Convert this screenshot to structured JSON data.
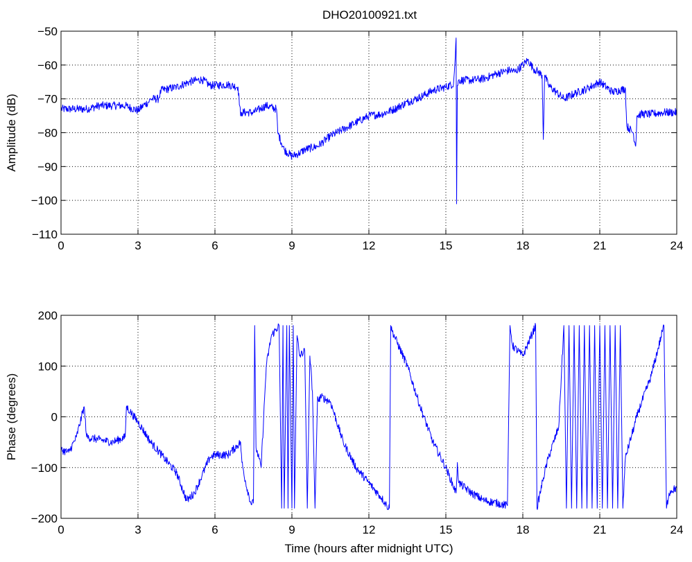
{
  "figure": {
    "title": "DHO20100921.txt"
  },
  "colors": {
    "line": "#0000ff",
    "axes": "#000000",
    "grid": "#000000",
    "background": "#ffffff"
  },
  "chart_data": [
    {
      "type": "line",
      "title": "DHO20100921.txt",
      "xlabel": "",
      "ylabel": "Amplitude (dB)",
      "xlim": [
        0,
        24
      ],
      "ylim": [
        -110,
        -50
      ],
      "xticks": [
        0,
        3,
        6,
        9,
        12,
        15,
        18,
        21,
        24
      ],
      "yticks": [
        -110,
        -100,
        -90,
        -80,
        -70,
        -60,
        -50
      ],
      "grid": true,
      "noise": 1.2,
      "series": [
        {
          "x": [
            0,
            0.5,
            1,
            1.5,
            2,
            2.5,
            3,
            3.2,
            3.4,
            3.5,
            3.8,
            3.9,
            4.5,
            5,
            5.3,
            5.5,
            5.8,
            6,
            6.5,
            6.9,
            7.0,
            7.05,
            7.5,
            8.0,
            8.4,
            8.45,
            8.7,
            9.0,
            9.3,
            9.5,
            10,
            10.5,
            11,
            11.5,
            12,
            12.5,
            13,
            13.5,
            14,
            14.5,
            15,
            15.3,
            15.35,
            15.4,
            15.42,
            15.45,
            15.5,
            16,
            16.5,
            17,
            17.5,
            17.7,
            18,
            18.2,
            18.4,
            18.6,
            18.75,
            18.8,
            18.85,
            19.0,
            19.3,
            19.6,
            20,
            20.5,
            21,
            21.5,
            22.0,
            22.05,
            22.3,
            22.4,
            22.45,
            22.6,
            23.0,
            23.5,
            24.0
          ],
          "y": [
            -73,
            -73,
            -73,
            -72,
            -72,
            -72,
            -73.5,
            -72,
            -71,
            -70,
            -70,
            -67.5,
            -66.5,
            -65,
            -64.5,
            -64.3,
            -66,
            -66,
            -65.8,
            -66.5,
            -75,
            -74,
            -74,
            -72,
            -73,
            -80,
            -85,
            -87,
            -86,
            -85,
            -84,
            -81,
            -79,
            -77,
            -75,
            -74.5,
            -73,
            -71,
            -69.5,
            -67.5,
            -66.5,
            -65.5,
            -60,
            -52,
            -101,
            -66,
            -64.5,
            -64.5,
            -64,
            -62.5,
            -61.5,
            -62,
            -60,
            -58.5,
            -61,
            -62,
            -63,
            -82,
            -63,
            -66,
            -68,
            -70,
            -68.5,
            -67,
            -65,
            -68,
            -67,
            -78,
            -80,
            -84,
            -75,
            -74.5,
            -74.5,
            -74,
            -74
          ]
        }
      ]
    },
    {
      "type": "line",
      "title": "",
      "xlabel": "Time (hours after midnight UTC)",
      "ylabel": "Phase (degrees)",
      "xlim": [
        0,
        24
      ],
      "ylim": [
        -200,
        200
      ],
      "xticks": [
        0,
        3,
        6,
        9,
        12,
        15,
        18,
        21,
        24
      ],
      "yticks": [
        -200,
        -100,
        0,
        100,
        200
      ],
      "grid": true,
      "noise": 8,
      "series": [
        {
          "x": [
            0,
            0.3,
            0.6,
            0.8,
            0.9,
            1.0,
            1.5,
            2.0,
            2.5,
            2.55,
            2.7,
            3.0,
            3.5,
            4.0,
            4.5,
            4.9,
            5.2,
            5.5,
            5.8,
            6.0,
            6.5,
            7.0,
            7.05,
            7.2,
            7.4,
            7.5,
            7.55,
            7.6,
            7.8,
            8.0,
            8.2,
            8.5,
            8.6,
            8.65,
            8.7,
            8.8,
            8.85,
            8.9,
            9.0,
            9.05,
            9.1,
            9.2,
            9.3,
            9.5,
            9.6,
            9.7,
            9.8,
            9.9,
            10.0,
            10.05,
            10.1,
            10.3,
            10.5,
            11.0,
            11.5,
            12.0,
            12.5,
            12.7,
            12.8,
            12.85,
            12.9,
            13.5,
            14.0,
            14.5,
            15.0,
            15.4,
            15.45,
            15.5,
            16.0,
            16.5,
            17.0,
            17.4,
            17.5,
            17.55,
            17.6,
            18.0,
            18.5,
            18.55,
            18.8,
            19.0,
            19.4,
            19.6,
            19.7,
            19.8,
            19.9,
            20.0,
            20.1,
            20.2,
            20.3,
            20.4,
            20.5,
            20.6,
            20.7,
            20.8,
            20.9,
            21.0,
            21.1,
            21.2,
            21.3,
            21.4,
            21.5,
            21.6,
            21.7,
            21.8,
            21.9,
            22.0,
            22.5,
            23.0,
            23.5,
            23.6,
            23.7,
            23.8,
            24.0
          ],
          "y": [
            -65,
            -70,
            -40,
            0,
            20,
            -40,
            -45,
            -50,
            -40,
            20,
            10,
            -10,
            -50,
            -80,
            -110,
            -165,
            -150,
            -115,
            -80,
            -75,
            -75,
            -50,
            -90,
            -130,
            -170,
            -170,
            180,
            -60,
            -100,
            100,
            160,
            180,
            -180,
            180,
            -180,
            180,
            -180,
            180,
            -180,
            180,
            -180,
            160,
            120,
            130,
            -180,
            120,
            50,
            -180,
            40,
            30,
            40,
            35,
            30,
            -50,
            -100,
            -130,
            -160,
            -175,
            -180,
            180,
            170,
            100,
            20,
            -50,
            -100,
            -150,
            -90,
            -130,
            -150,
            -165,
            -170,
            -175,
            180,
            160,
            140,
            120,
            180,
            -180,
            -120,
            -80,
            -20,
            180,
            -180,
            180,
            -180,
            180,
            -180,
            180,
            -180,
            180,
            -180,
            180,
            -180,
            180,
            -180,
            180,
            -180,
            180,
            -180,
            180,
            -180,
            180,
            -180,
            180,
            -180,
            -80,
            10,
            80,
            180,
            -180,
            -150,
            -145,
            -140
          ]
        }
      ]
    }
  ]
}
